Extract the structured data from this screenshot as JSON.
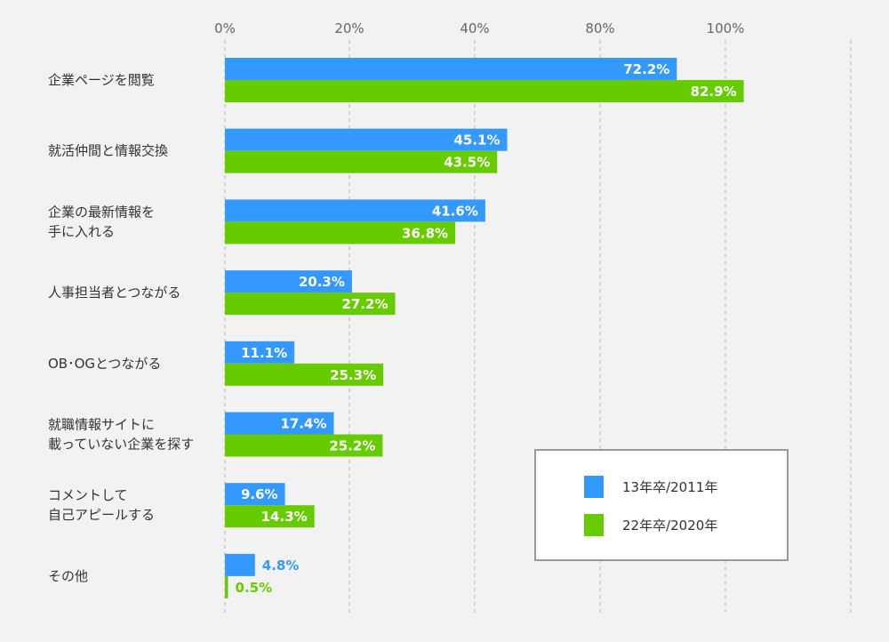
{
  "chart_data": {
    "type": "bar",
    "orientation": "horizontal",
    "xlim": [
      0,
      100
    ],
    "x_tick_labels": [
      "0%",
      "20%",
      "40%",
      "80%",
      "100%"
    ],
    "grid": "vertical dashed",
    "legend_position": "bottom-right",
    "categories": [
      [
        "企業ページを閲覧"
      ],
      [
        "就活仲間と情報交換"
      ],
      [
        "企業の最新情報を",
        "手に入れる"
      ],
      [
        "人事担当者とつながる"
      ],
      [
        "OB･OGとつながる"
      ],
      [
        "就職情報サイトに",
        "載っていない企業を探す"
      ],
      [
        "コメントして",
        "自己アピールする"
      ],
      [
        "その他"
      ]
    ],
    "series": [
      {
        "name": "13年卒/2011年",
        "color": "#3399ff",
        "values": [
          72.2,
          45.1,
          41.6,
          20.3,
          11.1,
          17.4,
          9.6,
          4.8
        ],
        "labels": [
          "72.2%",
          "45.1%",
          "41.6%",
          "20.3%",
          "11.1%",
          "17.4%",
          "9.6%",
          "4.8%"
        ]
      },
      {
        "name": "22年卒/2020年",
        "color": "#66cc00",
        "values": [
          82.9,
          43.5,
          36.8,
          27.2,
          25.3,
          25.2,
          14.3,
          0.5
        ],
        "labels": [
          "82.9%",
          "43.5%",
          "36.8%",
          "27.2%",
          "25.3%",
          "25.2%",
          "14.3%",
          "0.5%"
        ]
      }
    ]
  }
}
